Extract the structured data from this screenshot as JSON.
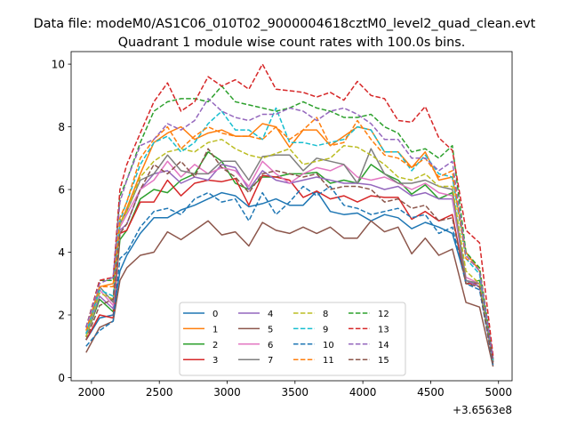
{
  "figure": {
    "suptitle": "Data file: modeM0/AS1C06_010T02_9000004618cztM0_level2_quad_clean.evt"
  },
  "chart_data": {
    "type": "line",
    "title": "Quadrant 1 module wise count rates with 100.0s bins.",
    "xlabel": "",
    "ylabel": "",
    "x_offset_label": "+3.6563e8",
    "x_offset": 365630000,
    "xlim": [
      1850,
      5100
    ],
    "ylim": [
      -0.1,
      10.4
    ],
    "xticks": [
      2000,
      2500,
      3000,
      3500,
      4000,
      4500,
      5000
    ],
    "yticks": [
      0,
      2,
      4,
      6,
      8,
      10
    ],
    "grid": false,
    "legend": {
      "placement": "lower center",
      "columns": 4
    },
    "x": [
      1960,
      2060,
      2160,
      2210,
      2260,
      2360,
      2460,
      2560,
      2660,
      2760,
      2860,
      2960,
      3060,
      3160,
      3260,
      3360,
      3460,
      3560,
      3660,
      3760,
      3860,
      3960,
      4060,
      4160,
      4260,
      4360,
      4460,
      4560,
      4660,
      4760,
      4860,
      4960
    ],
    "series": [
      {
        "name": "0",
        "color": "#1f77b4",
        "dash": "solid",
        "values": [
          1.2,
          1.9,
          2.0,
          3.4,
          3.9,
          4.6,
          5.1,
          5.1,
          5.35,
          5.5,
          5.7,
          5.9,
          5.8,
          5.45,
          5.55,
          5.7,
          5.5,
          5.5,
          5.95,
          5.3,
          5.2,
          5.25,
          5.0,
          5.2,
          5.1,
          4.75,
          4.95,
          4.8,
          4.6,
          3.1,
          2.9,
          0.5
        ]
      },
      {
        "name": "1",
        "color": "#ff7f0e",
        "dash": "solid",
        "values": [
          1.4,
          2.9,
          3.0,
          4.9,
          5.4,
          6.5,
          7.5,
          7.8,
          8.0,
          7.6,
          7.8,
          7.9,
          7.7,
          7.7,
          8.1,
          8.0,
          7.35,
          7.9,
          7.9,
          7.4,
          7.7,
          8.0,
          7.9,
          7.2,
          7.2,
          6.7,
          7.2,
          6.3,
          6.4,
          4.0,
          3.4,
          0.55
        ]
      },
      {
        "name": "2",
        "color": "#2ca02c",
        "dash": "solid",
        "values": [
          1.3,
          2.5,
          2.1,
          4.4,
          4.7,
          5.7,
          6.0,
          5.9,
          6.3,
          6.5,
          7.2,
          6.9,
          6.2,
          6.0,
          6.4,
          6.4,
          6.5,
          6.5,
          6.55,
          6.2,
          6.3,
          6.2,
          6.8,
          6.5,
          6.3,
          5.85,
          6.15,
          5.7,
          5.9,
          3.0,
          3.1,
          0.55
        ]
      },
      {
        "name": "3",
        "color": "#d62728",
        "dash": "solid",
        "values": [
          1.2,
          2.0,
          1.9,
          4.6,
          4.7,
          5.6,
          5.6,
          6.3,
          5.8,
          6.2,
          6.3,
          6.25,
          6.35,
          5.5,
          6.45,
          6.4,
          6.3,
          5.75,
          5.95,
          5.7,
          5.8,
          5.6,
          5.8,
          5.75,
          5.75,
          5.05,
          5.3,
          5.0,
          5.2,
          3.0,
          3.0,
          0.5
        ]
      },
      {
        "name": "4",
        "color": "#9467bd",
        "dash": "solid",
        "values": [
          1.3,
          2.6,
          2.2,
          4.7,
          4.9,
          6.0,
          6.5,
          6.6,
          6.2,
          6.4,
          6.3,
          6.8,
          6.7,
          6.0,
          6.6,
          6.3,
          6.2,
          6.3,
          6.4,
          6.3,
          6.2,
          6.2,
          6.15,
          6.0,
          6.1,
          5.8,
          5.9,
          5.7,
          5.7,
          3.1,
          2.9,
          0.5
        ]
      },
      {
        "name": "5",
        "color": "#8c564b",
        "dash": "solid",
        "values": [
          0.8,
          1.6,
          1.8,
          3.1,
          3.5,
          3.9,
          4.0,
          4.65,
          4.4,
          4.7,
          5.0,
          4.55,
          4.65,
          4.2,
          4.95,
          4.7,
          4.6,
          4.8,
          4.6,
          4.8,
          4.45,
          4.45,
          5.0,
          4.65,
          4.8,
          3.95,
          4.45,
          3.9,
          4.1,
          2.4,
          2.25,
          0.35
        ]
      },
      {
        "name": "6",
        "color": "#e377c2",
        "dash": "solid",
        "values": [
          1.3,
          2.8,
          2.3,
          4.8,
          5.2,
          6.0,
          6.3,
          6.9,
          6.4,
          6.8,
          6.5,
          6.7,
          6.6,
          6.1,
          6.9,
          6.5,
          6.2,
          6.5,
          6.7,
          6.6,
          6.8,
          6.4,
          6.3,
          6.4,
          6.2,
          6.0,
          6.2,
          5.9,
          5.8,
          3.2,
          3.0,
          0.55
        ]
      },
      {
        "name": "7",
        "color": "#7f7f7f",
        "dash": "solid",
        "values": [
          1.3,
          2.9,
          2.4,
          4.9,
          5.3,
          6.3,
          6.5,
          7.1,
          6.6,
          6.5,
          6.5,
          6.9,
          6.9,
          6.3,
          7.05,
          7.1,
          7.1,
          6.6,
          7.0,
          6.9,
          6.8,
          6.2,
          7.3,
          6.5,
          6.2,
          6.2,
          6.3,
          6.1,
          6.0,
          3.1,
          3.0,
          0.5
        ]
      },
      {
        "name": "8",
        "color": "#bcbd22",
        "dash": "dashed",
        "values": [
          1.3,
          2.7,
          2.5,
          4.9,
          5.3,
          6.4,
          6.9,
          7.2,
          7.3,
          7.2,
          7.5,
          7.6,
          7.3,
          7.1,
          7.0,
          7.15,
          7.3,
          6.8,
          6.9,
          7.0,
          7.4,
          7.35,
          7.1,
          6.8,
          6.4,
          6.3,
          6.5,
          6.1,
          6.1,
          3.4,
          3.0,
          0.55
        ]
      },
      {
        "name": "9",
        "color": "#17becf",
        "dash": "dashed",
        "values": [
          1.4,
          2.8,
          2.6,
          5.0,
          5.6,
          6.8,
          7.5,
          7.7,
          7.2,
          7.5,
          8.1,
          8.5,
          7.9,
          7.9,
          7.6,
          8.6,
          7.5,
          7.5,
          7.4,
          7.5,
          7.6,
          8.0,
          7.9,
          7.2,
          7.2,
          6.6,
          7.1,
          6.5,
          6.4,
          3.8,
          3.3,
          0.55
        ]
      },
      {
        "name": "10",
        "color": "#1f77b4",
        "dash": "dashed",
        "values": [
          1.0,
          1.5,
          1.8,
          3.8,
          4.0,
          4.8,
          5.3,
          5.4,
          5.2,
          5.7,
          5.9,
          5.6,
          5.7,
          5.0,
          5.9,
          5.2,
          5.6,
          6.1,
          5.8,
          6.1,
          5.5,
          5.4,
          5.2,
          5.3,
          5.4,
          5.1,
          5.2,
          4.6,
          4.8,
          3.0,
          2.8,
          0.4
        ]
      },
      {
        "name": "11",
        "color": "#ff7f0e",
        "dash": "dashed",
        "values": [
          1.5,
          2.9,
          2.9,
          5.1,
          5.6,
          7.0,
          7.6,
          8.0,
          7.3,
          7.7,
          8.0,
          7.8,
          7.7,
          7.7,
          7.6,
          8.0,
          7.6,
          7.9,
          8.3,
          7.4,
          7.5,
          8.2,
          7.6,
          7.1,
          7.0,
          6.7,
          7.0,
          6.4,
          6.6,
          3.8,
          3.5,
          0.6
        ]
      },
      {
        "name": "12",
        "color": "#2ca02c",
        "dash": "dashed",
        "values": [
          1.6,
          3.1,
          3.1,
          5.8,
          6.3,
          7.5,
          8.5,
          8.8,
          8.9,
          8.9,
          8.8,
          9.3,
          8.8,
          8.7,
          8.6,
          8.5,
          8.6,
          8.8,
          8.6,
          8.5,
          8.3,
          8.3,
          8.4,
          8.0,
          7.8,
          7.2,
          7.3,
          7.0,
          7.4,
          4.0,
          3.5,
          0.6
        ]
      },
      {
        "name": "13",
        "color": "#d62728",
        "dash": "dashed",
        "values": [
          1.6,
          3.1,
          3.2,
          6.0,
          6.8,
          7.8,
          8.8,
          9.4,
          8.5,
          8.8,
          9.6,
          9.3,
          9.5,
          9.2,
          10.0,
          9.2,
          9.15,
          9.1,
          8.95,
          9.1,
          8.85,
          9.45,
          9.0,
          8.9,
          8.2,
          8.15,
          8.65,
          7.65,
          7.25,
          4.7,
          4.3,
          0.7
        ]
      },
      {
        "name": "14",
        "color": "#9467bd",
        "dash": "dashed",
        "values": [
          1.6,
          3.0,
          3.2,
          5.6,
          6.3,
          7.4,
          7.6,
          8.1,
          7.9,
          8.2,
          8.9,
          8.5,
          8.3,
          8.2,
          8.4,
          8.4,
          8.6,
          8.5,
          8.2,
          8.5,
          8.6,
          8.4,
          8.1,
          7.6,
          7.6,
          7.0,
          7.0,
          6.6,
          6.9,
          3.9,
          3.4,
          0.6
        ]
      },
      {
        "name": "15",
        "color": "#8c564b",
        "dash": "dashed",
        "values": [
          1.2,
          2.3,
          2.5,
          4.6,
          4.9,
          6.0,
          6.8,
          6.5,
          6.9,
          6.4,
          7.3,
          6.7,
          6.4,
          5.9,
          6.5,
          6.6,
          6.5,
          6.4,
          6.5,
          6.0,
          6.1,
          6.1,
          6.0,
          5.6,
          5.7,
          5.4,
          5.5,
          5.0,
          5.1,
          3.0,
          2.9,
          0.45
        ]
      }
    ]
  }
}
